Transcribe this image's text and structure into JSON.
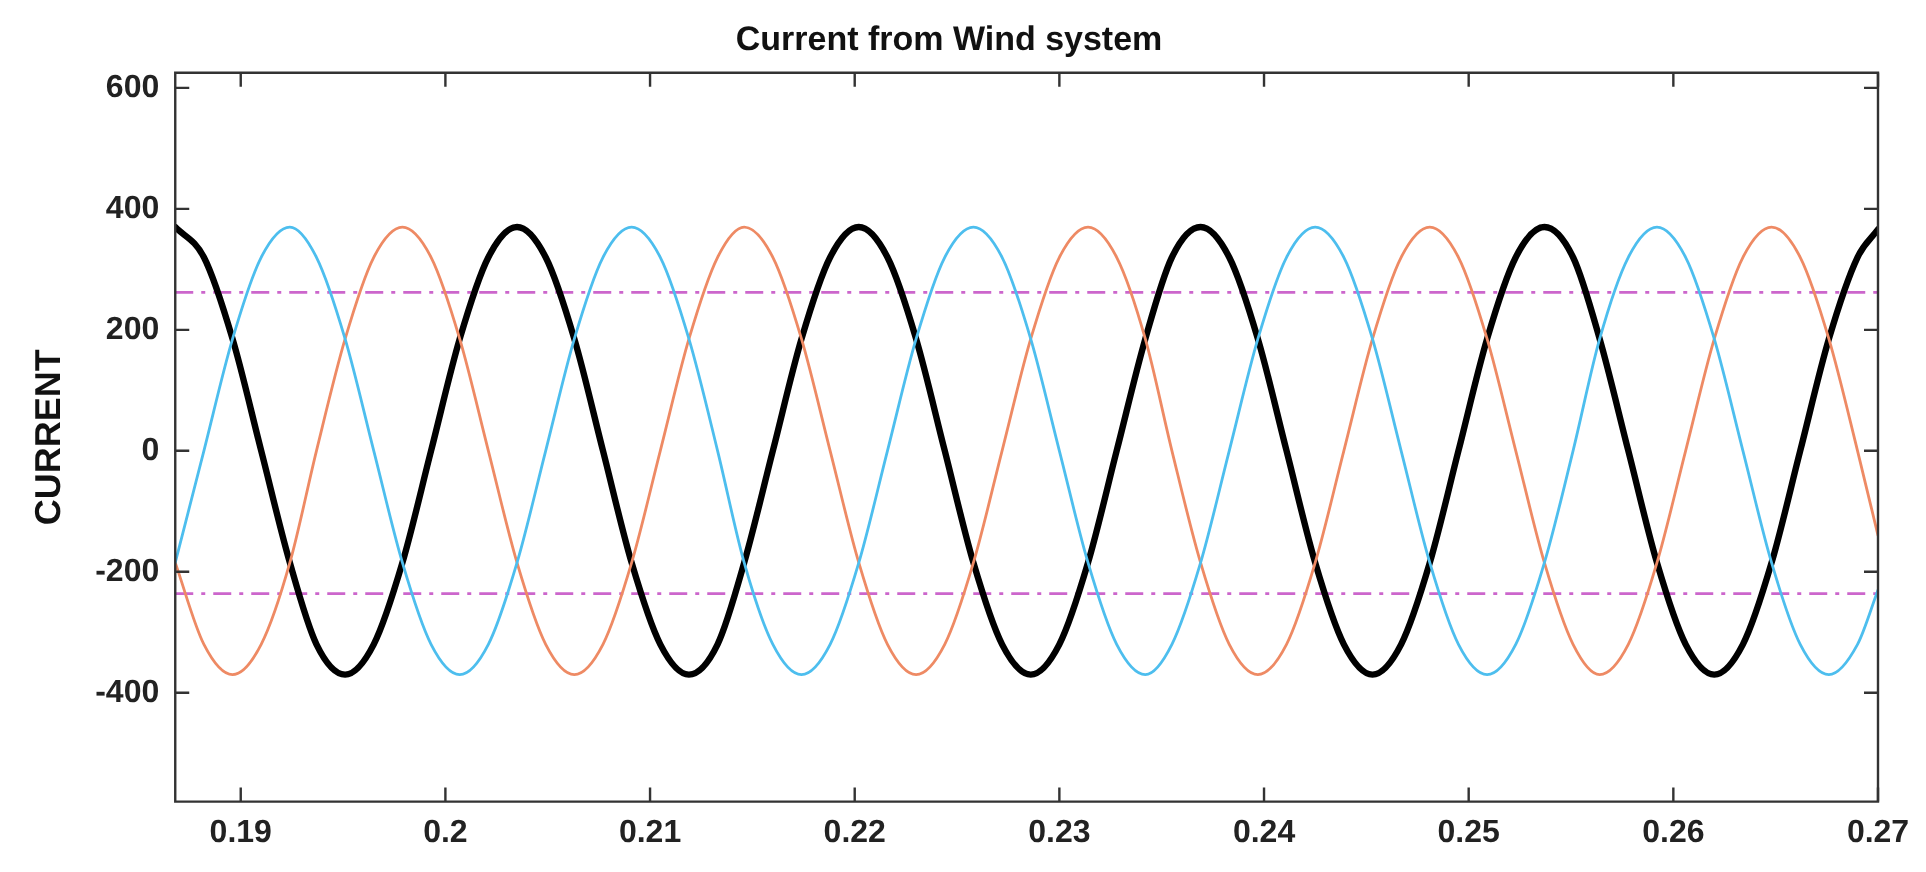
{
  "chart_data": {
    "type": "line",
    "title": "Current from Wind system",
    "ylabel": "CURRENT",
    "x": [
      0.1868,
      0.1882,
      0.1896,
      0.191,
      0.1924,
      0.1937,
      0.1951,
      0.1965,
      0.1979,
      0.1993,
      0.2007,
      0.2021,
      0.2035,
      0.2049,
      0.2063,
      0.2077,
      0.2091,
      0.2105,
      0.2119,
      0.2133,
      0.2146,
      0.216,
      0.2174,
      0.2188,
      0.2202,
      0.2216,
      0.223,
      0.2244,
      0.2258,
      0.2272,
      0.2286,
      0.23,
      0.2314,
      0.2328,
      0.2342,
      0.2355,
      0.2369,
      0.2383,
      0.2397,
      0.2411,
      0.2425,
      0.2439,
      0.2453,
      0.2467,
      0.2481,
      0.2495,
      0.2509,
      0.2523,
      0.2537,
      0.2551,
      0.2564,
      0.2578,
      0.2592,
      0.2606,
      0.262,
      0.2634,
      0.2648,
      0.2662,
      0.2676,
      0.269,
      0.27
    ],
    "series": [
      {
        "color": "#4dbeee",
        "values": [
          -185,
          0,
          185,
          320,
          370,
          320,
          185,
          0,
          -185,
          -320,
          -370,
          -320,
          -185,
          0,
          185,
          320,
          370,
          320,
          185,
          0,
          -185,
          -320,
          -370,
          -320,
          -185,
          0,
          185,
          320,
          370,
          320,
          185,
          0,
          -185,
          -320,
          -370,
          -320,
          -185,
          0,
          185,
          320,
          370,
          320,
          185,
          0,
          -185,
          -320,
          -370,
          -320,
          -185,
          0,
          185,
          320,
          370,
          320,
          185,
          0,
          -185,
          -320,
          -370,
          -320,
          -230
        ]
      },
      {
        "color": "#ee8a64",
        "values": [
          -185,
          -320,
          -370,
          -320,
          -185,
          0,
          185,
          320,
          370,
          320,
          185,
          0,
          -185,
          -320,
          -370,
          -320,
          -185,
          0,
          185,
          320,
          370,
          320,
          185,
          0,
          -185,
          -320,
          -370,
          -320,
          -185,
          0,
          185,
          320,
          370,
          320,
          185,
          0,
          -185,
          -320,
          -370,
          -320,
          -185,
          0,
          185,
          320,
          370,
          320,
          185,
          0,
          -185,
          -320,
          -370,
          -320,
          -185,
          0,
          185,
          320,
          370,
          320,
          185,
          0,
          -140
        ]
      },
      {
        "color": "#000000",
        "values": [
          370,
          320,
          185,
          0,
          -185,
          -320,
          -370,
          -320,
          -185,
          0,
          185,
          320,
          370,
          320,
          185,
          0,
          -185,
          -320,
          -370,
          -320,
          -185,
          0,
          185,
          320,
          370,
          320,
          185,
          0,
          -185,
          -320,
          -370,
          -320,
          -185,
          0,
          185,
          320,
          370,
          320,
          185,
          0,
          -185,
          -320,
          -370,
          -320,
          -185,
          0,
          185,
          320,
          370,
          320,
          185,
          0,
          -185,
          -320,
          -370,
          -320,
          -185,
          0,
          185,
          320,
          366
        ]
      }
    ],
    "xlim": [
      0.1868,
      0.27
    ],
    "xticks": [
      0.19,
      0.2,
      0.21,
      0.22,
      0.23,
      0.24,
      0.25,
      0.26,
      0.27
    ],
    "ylim": [
      -580,
      625
    ],
    "yticks": [
      -400,
      -200,
      0,
      200,
      400,
      600
    ],
    "ref_lines": [
      {
        "axis": "y",
        "value": 262,
        "color": "#cc66cc",
        "line_style": "dashed"
      },
      {
        "axis": "y",
        "value": -236,
        "color": "#cc66cc",
        "line_style": "dashed"
      }
    ],
    "grid": false,
    "legend": false,
    "marker": "none",
    "line_style": "solid"
  }
}
